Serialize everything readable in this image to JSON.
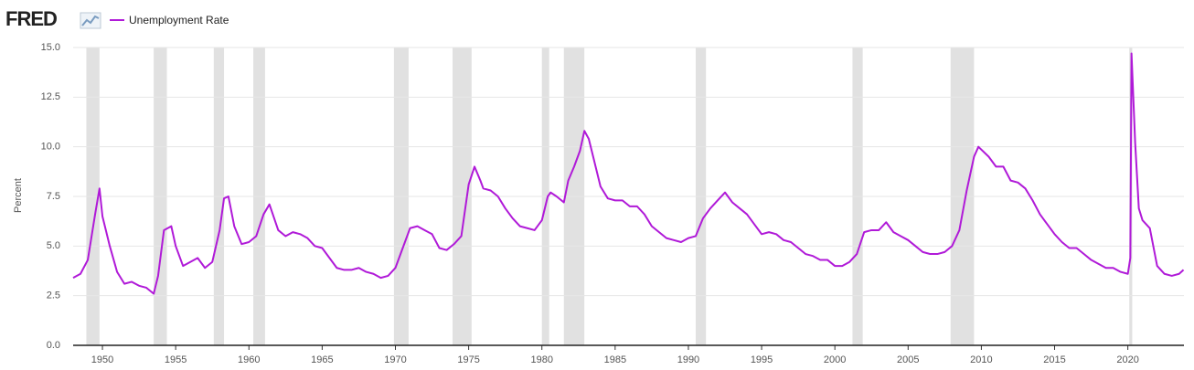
{
  "logo": "FRED",
  "chart_data": {
    "type": "line",
    "y_label": "Percent",
    "series": [
      {
        "name": "Unemployment Rate",
        "color": "#b01ad8",
        "values": [
          3.4,
          3.6,
          4.3,
          6.6,
          7.9,
          6.5,
          5.0,
          3.7,
          3.1,
          3.2,
          3.0,
          2.9,
          2.6,
          3.5,
          5.8,
          6.0,
          5.0,
          4.0,
          4.2,
          4.4,
          3.9,
          4.2,
          5.8,
          7.4,
          7.5,
          6.0,
          5.1,
          5.2,
          5.5,
          6.6,
          7.1,
          5.8,
          5.5,
          5.7,
          5.6,
          5.4,
          5.0,
          4.9,
          4.4,
          3.9,
          3.8,
          3.8,
          3.9,
          3.7,
          3.6,
          3.4,
          3.5,
          3.9,
          4.9,
          5.9,
          6.0,
          5.8,
          5.6,
          4.9,
          4.8,
          5.1,
          5.5,
          8.1,
          9.0,
          8.3,
          7.9,
          7.8,
          7.5,
          6.9,
          6.4,
          6.0,
          5.9,
          5.8,
          6.3,
          7.5,
          7.7,
          7.5,
          7.2,
          8.3,
          9.0,
          9.8,
          10.8,
          10.4,
          9.5,
          8.0,
          7.4,
          7.3,
          7.3,
          7.0,
          7.0,
          6.6,
          6.0,
          5.7,
          5.4,
          5.3,
          5.2,
          5.4,
          5.5,
          6.4,
          6.9,
          7.3,
          7.7,
          7.2,
          6.9,
          6.6,
          6.1,
          5.6,
          5.7,
          5.6,
          5.3,
          5.2,
          4.9,
          4.6,
          4.5,
          4.3,
          4.3,
          4.0,
          4.0,
          4.2,
          4.6,
          5.7,
          5.8,
          5.8,
          6.2,
          5.7,
          5.5,
          5.3,
          5.0,
          4.7,
          4.6,
          4.6,
          4.7,
          5.0,
          5.8,
          7.8,
          9.5,
          10.0,
          9.5,
          9.0,
          9.0,
          8.3,
          8.2,
          7.9,
          7.3,
          6.6,
          6.1,
          5.6,
          5.2,
          4.9,
          4.9,
          4.6,
          4.3,
          4.1,
          3.9,
          3.9,
          3.7,
          3.6,
          4.4,
          14.7,
          10.2,
          6.9,
          6.3,
          5.9,
          4.0,
          3.6,
          3.5,
          3.6,
          3.8
        ]
      }
    ],
    "x": [
      1948.0,
      1948.5,
      1949.0,
      1949.5,
      1949.8,
      1950.0,
      1950.5,
      1951.0,
      1951.5,
      1952.0,
      1952.5,
      1953.0,
      1953.5,
      1953.8,
      1954.2,
      1954.7,
      1955.0,
      1955.5,
      1956.0,
      1956.5,
      1957.0,
      1957.5,
      1958.0,
      1958.3,
      1958.6,
      1959.0,
      1959.5,
      1960.0,
      1960.5,
      1961.0,
      1961.4,
      1962.0,
      1962.5,
      1963.0,
      1963.5,
      1964.0,
      1964.5,
      1965.0,
      1965.5,
      1966.0,
      1966.5,
      1967.0,
      1967.5,
      1968.0,
      1968.5,
      1969.0,
      1969.5,
      1970.0,
      1970.5,
      1971.0,
      1971.5,
      1972.0,
      1972.5,
      1973.0,
      1973.5,
      1974.0,
      1974.5,
      1975.0,
      1975.4,
      1975.8,
      1976.0,
      1976.5,
      1977.0,
      1977.5,
      1978.0,
      1978.5,
      1979.0,
      1979.5,
      1980.0,
      1980.4,
      1980.6,
      1981.0,
      1981.5,
      1981.8,
      1982.2,
      1982.6,
      1982.9,
      1983.2,
      1983.5,
      1984.0,
      1984.5,
      1985.0,
      1985.5,
      1986.0,
      1986.5,
      1987.0,
      1987.5,
      1988.0,
      1988.5,
      1989.0,
      1989.5,
      1990.0,
      1990.5,
      1991.0,
      1991.5,
      1992.0,
      1992.5,
      1993.0,
      1993.5,
      1994.0,
      1994.5,
      1995.0,
      1995.5,
      1996.0,
      1996.5,
      1997.0,
      1997.5,
      1998.0,
      1998.5,
      1999.0,
      1999.5,
      2000.0,
      2000.5,
      2001.0,
      2001.5,
      2002.0,
      2002.5,
      2003.0,
      2003.5,
      2004.0,
      2004.5,
      2005.0,
      2005.5,
      2006.0,
      2006.5,
      2007.0,
      2007.5,
      2008.0,
      2008.5,
      2009.0,
      2009.5,
      2009.8,
      2010.5,
      2011.0,
      2011.5,
      2012.0,
      2012.5,
      2013.0,
      2013.5,
      2014.0,
      2014.5,
      2015.0,
      2015.5,
      2016.0,
      2016.5,
      2017.0,
      2017.5,
      2018.0,
      2018.5,
      2019.0,
      2019.5,
      2020.0,
      2020.17,
      2020.25,
      2020.5,
      2020.75,
      2021.0,
      2021.5,
      2022.0,
      2022.5,
      2023.0,
      2023.5,
      2023.8
    ],
    "recessions": [
      [
        1948.9,
        1949.8
      ],
      [
        1953.5,
        1954.4
      ],
      [
        1957.6,
        1958.3
      ],
      [
        1960.3,
        1961.1
      ],
      [
        1969.9,
        1970.9
      ],
      [
        1973.9,
        1975.2
      ],
      [
        1980.0,
        1980.5
      ],
      [
        1981.5,
        1982.9
      ],
      [
        1990.5,
        1991.2
      ],
      [
        2001.2,
        2001.9
      ],
      [
        2007.9,
        2009.5
      ],
      [
        2020.1,
        2020.3
      ]
    ],
    "recession_color": "#e1e1e1",
    "xlim": [
      1948.0,
      2023.83
    ],
    "ylim": [
      0,
      15
    ],
    "xticks": [
      1950,
      1955,
      1960,
      1965,
      1970,
      1975,
      1980,
      1985,
      1990,
      1995,
      2000,
      2005,
      2010,
      2015,
      2020
    ],
    "yticks": [
      {
        "value": 0,
        "label": "0.0"
      },
      {
        "value": 2.5,
        "label": "2.5"
      },
      {
        "value": 5,
        "label": "5.0"
      },
      {
        "value": 7.5,
        "label": "7.5"
      },
      {
        "value": 10,
        "label": "10.0"
      },
      {
        "value": 12.5,
        "label": "12.5"
      },
      {
        "value": 15,
        "label": "15.0"
      }
    ],
    "grid": true
  }
}
